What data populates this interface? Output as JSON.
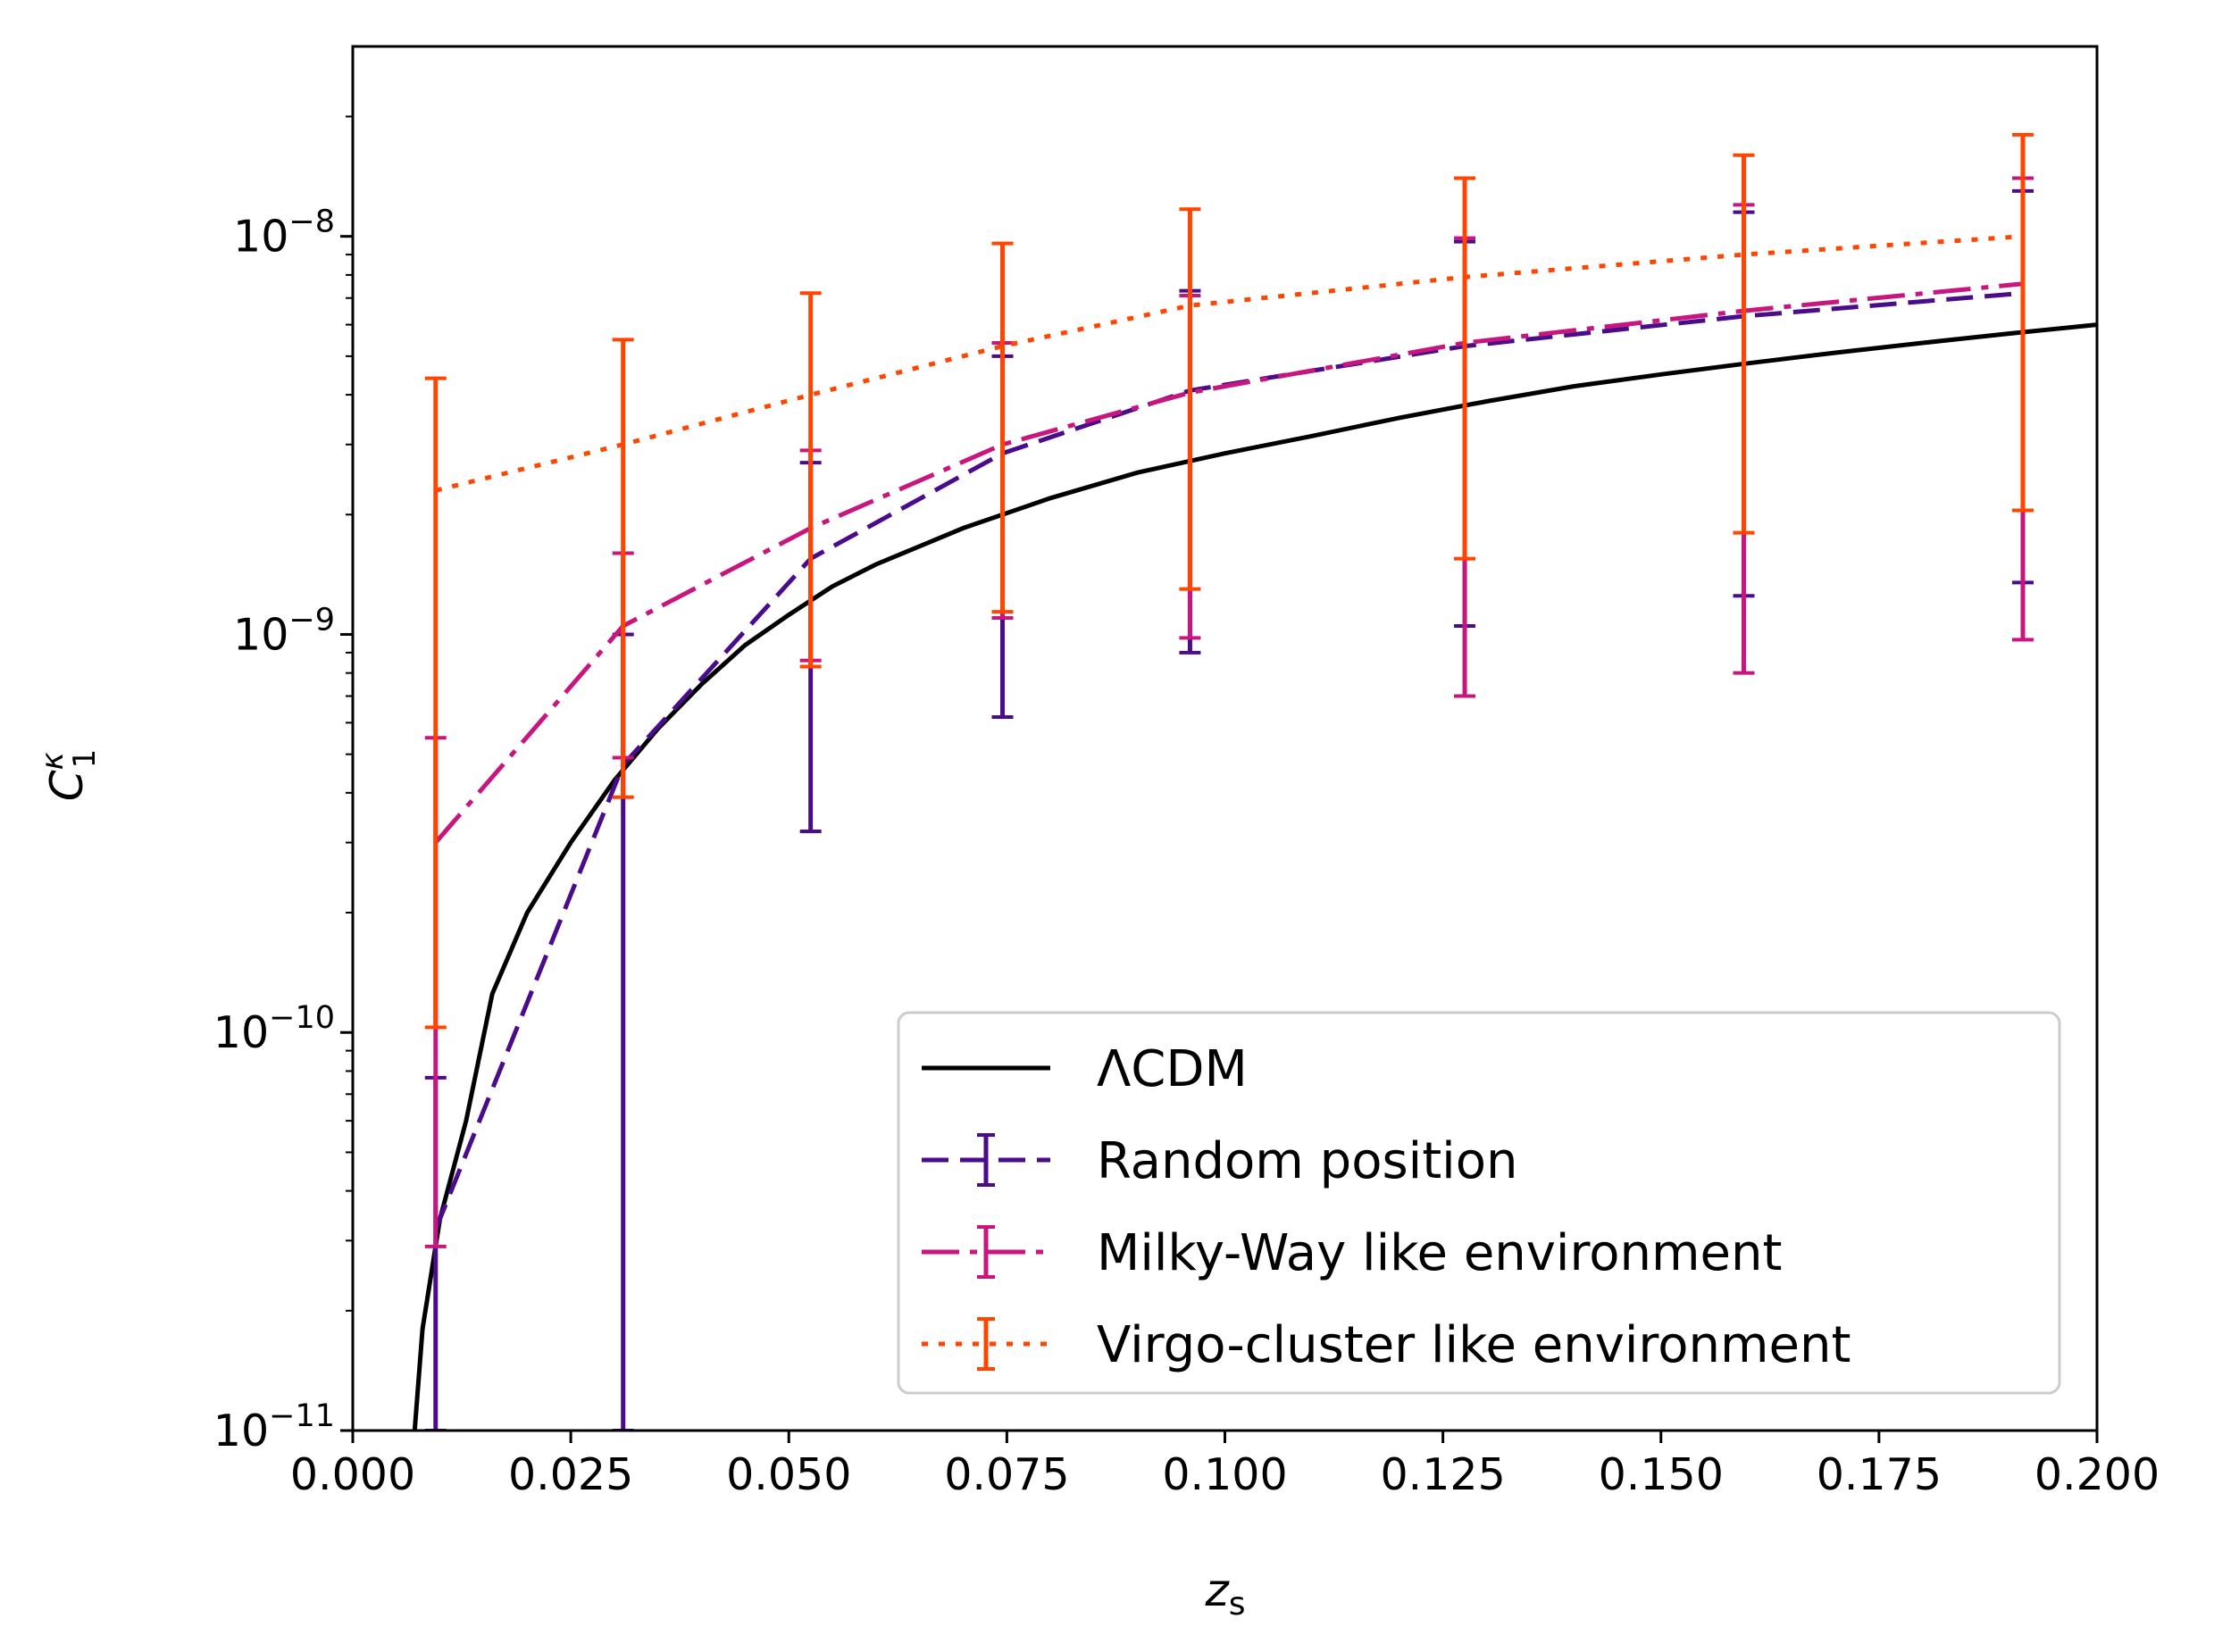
{
  "chart_data": {
    "type": "line",
    "title": "",
    "xlabel": "z",
    "xlabel_sub": "s",
    "ylabel": "C",
    "ylabel_sub": "1",
    "ylabel_sup": "κ",
    "xlim": [
      0.0,
      0.2
    ],
    "ylim": [
      1e-11,
      3e-08
    ],
    "yscale": "log",
    "x_ticks": [
      0.0,
      0.025,
      0.05,
      0.075,
      0.1,
      0.125,
      0.15,
      0.175,
      0.2
    ],
    "x_tick_labels": [
      "0.000",
      "0.025",
      "0.050",
      "0.075",
      "0.100",
      "0.125",
      "0.150",
      "0.175",
      "0.200"
    ],
    "y_ticks": [
      {
        "value": 1e-11,
        "base": "10",
        "exp": "−11"
      },
      {
        "value": 1e-10,
        "base": "10",
        "exp": "−10"
      },
      {
        "value": 1e-09,
        "base": "10",
        "exp": "−9"
      },
      {
        "value": 1e-08,
        "base": "10",
        "exp": "−8"
      }
    ],
    "legend_position": "lower-right",
    "series": [
      {
        "name": "ΛCDM",
        "color": "#000000",
        "style": "solid",
        "errorbars": false,
        "x": [
          0.0071,
          0.008,
          0.01,
          0.013,
          0.016,
          0.02,
          0.025,
          0.03,
          0.035,
          0.04,
          0.045,
          0.05,
          0.055,
          0.06,
          0.07,
          0.08,
          0.09,
          0.1,
          0.11,
          0.12,
          0.13,
          0.14,
          0.15,
          0.16,
          0.17,
          0.18,
          0.19,
          0.2
        ],
        "y": [
          1e-11,
          1.8e-11,
          3.4e-11,
          6e-11,
          1.25e-10,
          2e-10,
          3e-10,
          4.3e-10,
          5.8e-10,
          7.5e-10,
          9.4e-10,
          1.12e-09,
          1.32e-09,
          1.5e-09,
          1.85e-09,
          2.2e-09,
          2.55e-09,
          2.85e-09,
          3.15e-09,
          3.5e-09,
          3.85e-09,
          4.2e-09,
          4.5e-09,
          4.8e-09,
          5.1e-09,
          5.4e-09,
          5.7e-09,
          6e-09
        ]
      },
      {
        "name": "Random position",
        "color": "#4a0c8a",
        "style": "dashed",
        "errorbars": true,
        "x": [
          0.0095,
          0.031,
          0.0525,
          0.0745,
          0.096,
          0.1275,
          0.1595,
          0.1915
        ],
        "y": [
          3.2e-11,
          4.7e-10,
          1.55e-09,
          2.85e-09,
          4.1e-09,
          5.3e-09,
          6.3e-09,
          7.2e-09
        ],
        "err_low": [
          1e-11,
          1e-11,
          3.2e-10,
          6.2e-10,
          9e-10,
          1.05e-09,
          1.25e-09,
          1.35e-09
        ],
        "err_high": [
          7.7e-11,
          1e-09,
          2.7e-09,
          5e-09,
          7.3e-09,
          9.7e-09,
          1.15e-08,
          1.3e-08
        ]
      },
      {
        "name": "Milky-Way like environment",
        "color": "#c7177f",
        "style": "dashdot",
        "errorbars": true,
        "x": [
          0.0095,
          0.031,
          0.0525,
          0.0745,
          0.096,
          0.1275,
          0.1595,
          0.1915
        ],
        "y": [
          3e-10,
          1.05e-09,
          1.85e-09,
          3e-09,
          4.05e-09,
          5.4e-09,
          6.5e-09,
          7.6e-09
        ],
        "err_low": [
          2.9e-11,
          4.9e-10,
          8.6e-10,
          1.1e-09,
          9.8e-10,
          7e-10,
          8e-10,
          9.7e-10
        ],
        "err_high": [
          5.5e-10,
          1.6e-09,
          2.9e-09,
          5.4e-09,
          7.1e-09,
          9.9e-09,
          1.2e-08,
          1.4e-08
        ]
      },
      {
        "name": "Virgo-cluster like environment",
        "color": "#ff4500",
        "style": "dotted",
        "errorbars": true,
        "x": [
          0.0095,
          0.031,
          0.0525,
          0.0745,
          0.096,
          0.1275,
          0.1595,
          0.1915
        ],
        "y": [
          2.3e-09,
          3e-09,
          4e-09,
          5.3e-09,
          6.7e-09,
          7.9e-09,
          9e-09,
          1e-08
        ],
        "err_low": [
          1.03e-10,
          3.9e-10,
          8.3e-10,
          1.14e-09,
          1.3e-09,
          1.55e-09,
          1.8e-09,
          2.05e-09
        ],
        "err_high": [
          4.4e-09,
          5.5e-09,
          7.2e-09,
          9.6e-09,
          1.17e-08,
          1.4e-08,
          1.6e-08,
          1.8e-08
        ]
      }
    ]
  }
}
